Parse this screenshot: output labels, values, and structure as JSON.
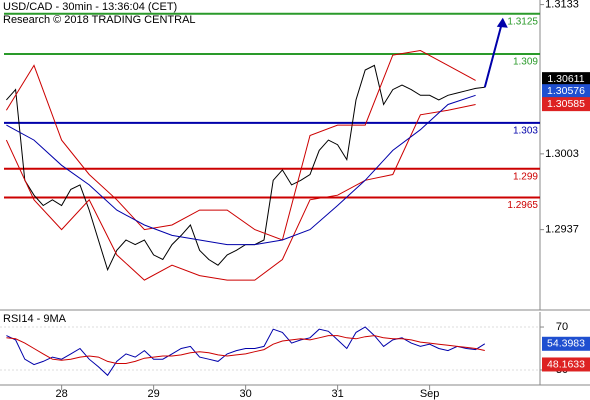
{
  "chart_data": [
    {
      "type": "line",
      "title": "USD/CAD - 30min - 13:36:04 (CET)",
      "subtitle": "Research © 2018 TRADING CENTRAL",
      "xlim": [
        27.33,
        33.2
      ],
      "ylim": [
        1.2867,
        1.3137
      ],
      "yticks": [
        1.3133,
        1.3003,
        1.2937
      ],
      "x": [
        27.4,
        27.5,
        27.6,
        27.7,
        27.8,
        27.9,
        28.0,
        28.1,
        28.2,
        28.3,
        28.4,
        28.5,
        28.6,
        28.7,
        28.8,
        28.9,
        29.0,
        29.1,
        29.2,
        29.3,
        29.4,
        29.5,
        29.6,
        29.7,
        29.8,
        29.9,
        30.0,
        30.1,
        30.2,
        30.3,
        30.4,
        30.5,
        30.6,
        30.7,
        30.8,
        30.9,
        31.0,
        31.1,
        31.2,
        31.3,
        31.4,
        31.5,
        31.6,
        31.7,
        31.8,
        31.9,
        32.0,
        32.1,
        32.2,
        32.3,
        32.4,
        32.5,
        32.6
      ],
      "series": [
        {
          "color": "#000000",
          "values": [
            1.305,
            1.3059,
            1.298,
            1.2967,
            1.2958,
            1.2963,
            1.2958,
            1.2972,
            1.2976,
            1.2954,
            1.2928,
            1.2902,
            1.2919,
            1.2928,
            1.2924,
            1.2928,
            1.2915,
            1.2911,
            1.2924,
            1.2932,
            1.2941,
            1.2919,
            1.2911,
            1.2906,
            1.2915,
            1.2919,
            1.2924,
            1.2924,
            1.2928,
            1.298,
            1.2989,
            1.2976,
            1.298,
            1.2985,
            1.3006,
            1.3015,
            1.3011,
            1.2998,
            1.305,
            1.3076,
            1.308,
            1.3046,
            1.3059,
            1.3063,
            1.3059,
            1.3054,
            1.3054,
            1.305,
            1.3054,
            1.3056,
            1.3058,
            1.306,
            1.3061
          ]
        },
        {
          "color": "#cc0000",
          "x": [
            27.4,
            27.7,
            28.0,
            28.3,
            28.6,
            28.9,
            29.2,
            29.5,
            29.8,
            30.1,
            30.4,
            30.7,
            31.0,
            31.3,
            31.6,
            31.9,
            32.2,
            32.5
          ],
          "values": [
            1.3041,
            1.308,
            1.3015,
            1.2985,
            1.2963,
            1.2937,
            1.2941,
            1.2954,
            1.2954,
            1.2937,
            1.2928,
            1.3019,
            1.3028,
            1.3028,
            1.3089,
            1.3093,
            1.308,
            1.3067
          ]
        },
        {
          "color": "#cc0000",
          "x": [
            27.4,
            27.7,
            28.0,
            28.3,
            28.6,
            28.9,
            29.2,
            29.5,
            29.8,
            30.1,
            30.4,
            30.7,
            31.0,
            31.3,
            31.6,
            31.9,
            32.2,
            32.5
          ],
          "values": [
            1.3015,
            1.2963,
            1.2937,
            1.2963,
            1.2915,
            1.2893,
            1.2906,
            1.2897,
            1.2893,
            1.2893,
            1.2911,
            1.2963,
            1.2967,
            1.298,
            1.2985,
            1.3037,
            1.3041,
            1.3046
          ]
        },
        {
          "color": "#0000aa",
          "x": [
            27.4,
            27.7,
            28.0,
            28.3,
            28.6,
            28.9,
            29.2,
            29.5,
            29.8,
            30.1,
            30.4,
            30.7,
            31.0,
            31.3,
            31.6,
            31.9,
            32.2,
            32.5
          ],
          "values": [
            1.3028,
            1.3015,
            1.2993,
            1.2976,
            1.2954,
            1.2941,
            1.2932,
            1.2928,
            1.2924,
            1.2924,
            1.2928,
            1.2937,
            1.2958,
            1.298,
            1.3006,
            1.3024,
            1.3046,
            1.3054
          ]
        }
      ],
      "levels": [
        {
          "value": 1.3125,
          "color": "#2a9a2a"
        },
        {
          "value": 1.309,
          "color": "#2a9a2a"
        },
        {
          "value": 1.303,
          "color": "#0000aa"
        },
        {
          "value": 1.299,
          "color": "#cc0000"
        },
        {
          "value": 1.2965,
          "color": "#cc0000"
        }
      ],
      "markers": [
        {
          "value": 1.30611,
          "color": "#000000"
        },
        {
          "value": 1.30576,
          "color": "#1f4fd0"
        },
        {
          "value": 1.30585,
          "color": "#dd2222"
        }
      ]
    },
    {
      "type": "line",
      "title": "RSI14 - 9MA",
      "xlim": [
        27.33,
        33.2
      ],
      "ylim": [
        16,
        84
      ],
      "yticks": [
        70,
        30
      ],
      "xticks": [
        {
          "value": 28,
          "label": "28"
        },
        {
          "value": 29,
          "label": "29"
        },
        {
          "value": 30,
          "label": "30"
        },
        {
          "value": 31,
          "label": "31"
        },
        {
          "value": 32,
          "label": "Sep"
        }
      ],
      "x": [
        27.4,
        27.5,
        27.6,
        27.7,
        27.8,
        27.9,
        28.0,
        28.1,
        28.2,
        28.3,
        28.4,
        28.5,
        28.6,
        28.7,
        28.8,
        28.9,
        29.0,
        29.1,
        29.2,
        29.3,
        29.4,
        29.5,
        29.6,
        29.7,
        29.8,
        29.9,
        30.0,
        30.1,
        30.2,
        30.3,
        30.4,
        30.5,
        30.6,
        30.7,
        30.8,
        30.9,
        31.0,
        31.1,
        31.2,
        31.3,
        31.4,
        31.5,
        31.6,
        31.7,
        31.8,
        31.9,
        32.0,
        32.1,
        32.2,
        32.3,
        32.4,
        32.5,
        32.6
      ],
      "series": [
        {
          "color": "#0000aa",
          "values": [
            62,
            58,
            40,
            35,
            38,
            42,
            40,
            45,
            50,
            40,
            33,
            25,
            38,
            45,
            42,
            48,
            40,
            40,
            45,
            50,
            52,
            42,
            40,
            38,
            45,
            48,
            50,
            50,
            52,
            68,
            65,
            55,
            58,
            60,
            68,
            66,
            58,
            50,
            65,
            70,
            62,
            52,
            58,
            60,
            55,
            52,
            54,
            50,
            48,
            52,
            50,
            49,
            54.3983
          ]
        },
        {
          "color": "#cc0000",
          "values": [
            60,
            59,
            55,
            50,
            45,
            40,
            39,
            40,
            42,
            43,
            42,
            38,
            36,
            36,
            38,
            41,
            42,
            43,
            43,
            44,
            46,
            47,
            46,
            44,
            43,
            44,
            45,
            47,
            49,
            54,
            57,
            58,
            59,
            58,
            60,
            62,
            62,
            60,
            59,
            61,
            62,
            60,
            59,
            59,
            58,
            56,
            55,
            54,
            53,
            52,
            51,
            50,
            48.1633
          ]
        }
      ],
      "markers": [
        {
          "value": 54.3983,
          "color": "#1f4fd0"
        },
        {
          "value": 48.1633,
          "color": "#dd2222"
        }
      ]
    }
  ]
}
